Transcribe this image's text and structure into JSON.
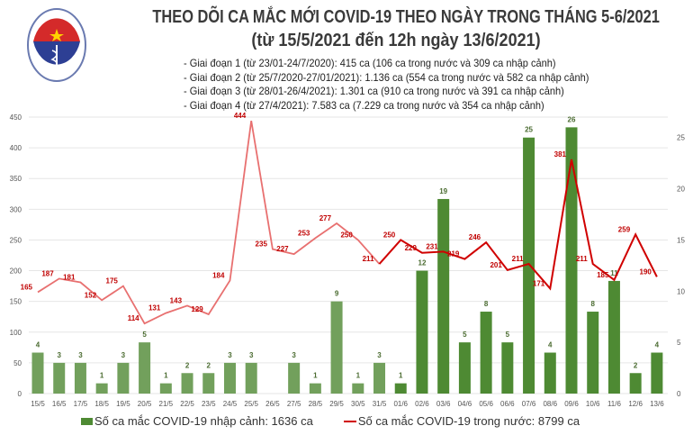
{
  "header": {
    "logo_text_top": "BỘ Y TẾ",
    "logo_text_bottom": "MINISTRY OF HEALTH",
    "title_line1": "THEO DÕI CA MẮC MỚI COVID-19 THEO NGÀY TRONG THÁNG 5-6/2021",
    "title_line2": "(từ 15/5/2021 đến 12h ngày 13/6/2021)",
    "phases": [
      "- Giai đoạn 1 (từ 23/01-24/7/2020): 415 ca (106 ca trong nước và 309 ca nhập cảnh)",
      "- Giai đoạn 2 (từ 25/7/2020-27/01/2021): 1.136 ca (554 ca trong nước và 582 ca nhập cảnh)",
      "- Giai đoạn 3 (từ 28/01-26/4/2021): 1.301 ca (910 ca trong nước và 391 ca nhập cảnh)",
      "- Giai đoạn 4 (từ 27/4/2021): 7.583 ca (7.229 ca trong nước và 354 ca nhập cảnh)"
    ]
  },
  "colors": {
    "bar": "#4e8a33",
    "bar_light": "#72a05c",
    "line": "#d00000",
    "line_light": "#e87070",
    "grid": "#e6e6e6"
  },
  "chart_data": {
    "type": "bar+line",
    "categories": [
      "15/5",
      "16/5",
      "17/5",
      "18/5",
      "19/5",
      "20/5",
      "21/5",
      "22/5",
      "23/5",
      "24/5",
      "25/5",
      "26/5",
      "27/5",
      "28/5",
      "29/5",
      "30/5",
      "31/5",
      "01/6",
      "02/6",
      "03/6",
      "04/6",
      "05/6",
      "06/6",
      "07/6",
      "08/6",
      "09/6",
      "10/6",
      "11/6",
      "12/6",
      "13/6"
    ],
    "series": [
      {
        "name": "Số ca mắc COVID-19 nhập cảnh: 1636 ca",
        "type": "bar",
        "axis": "right",
        "values": [
          4,
          3,
          3,
          1,
          3,
          5,
          1,
          2,
          2,
          3,
          3,
          0,
          3,
          1,
          9,
          1,
          3,
          1,
          12,
          19,
          5,
          8,
          5,
          25,
          4,
          26,
          8,
          11,
          2,
          4
        ]
      },
      {
        "name": "Số ca mắc COVID-19 trong nước: 8799 ca",
        "type": "line",
        "axis": "left",
        "values": [
          165,
          187,
          181,
          152,
          175,
          114,
          131,
          143,
          129,
          184,
          444,
          235,
          227,
          253,
          277,
          250,
          211,
          250,
          229,
          231,
          219,
          246,
          201,
          211,
          171,
          381,
          211,
          185,
          259,
          190
        ]
      }
    ],
    "left_axis": {
      "range": [
        0,
        450
      ],
      "ticks": [
        0,
        50,
        100,
        150,
        200,
        250,
        300,
        350,
        400,
        450
      ]
    },
    "right_axis": {
      "range": [
        0,
        27
      ],
      "ticks": [
        0,
        5,
        10,
        15,
        20,
        25
      ]
    },
    "grid": true,
    "legend": "bottom"
  }
}
